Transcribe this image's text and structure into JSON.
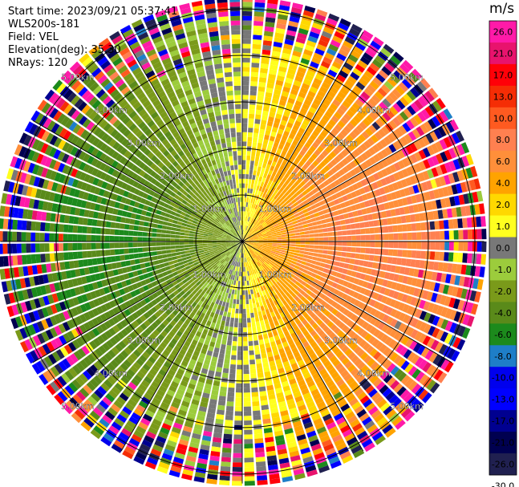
{
  "header": {
    "start_time": "Start time: 2023/09/21 05:37:41",
    "instrument": "WLS200s-181",
    "field": "Field: VEL",
    "elevation": "Elevation(deg): 35.30",
    "nrays": "NRays: 120"
  },
  "chart_data": {
    "type": "heatmap",
    "projection": "polar (PPI)",
    "title": "",
    "field": "VEL",
    "nrays": 120,
    "elevation_deg": 35.3,
    "range_rings_km": [
      1,
      2,
      3,
      4,
      5
    ],
    "range_ring_labels": [
      "1.00km",
      "2.00km",
      "3.00km",
      "4.00km",
      "5.00km"
    ],
    "max_range_km": 5.2,
    "gate_spacing_km": 0.1,
    "azimuth_lines_deg": [
      0,
      30,
      60,
      90,
      120,
      150,
      180,
      210,
      240,
      270,
      300,
      330
    ],
    "colorbar": {
      "unit": "m/s",
      "ticks": [
        "26.0",
        "21.0",
        "17.0",
        "13.0",
        "10.0",
        "8.0",
        "6.0",
        "4.0",
        "2.0",
        "1.0",
        "0.0",
        "-1.0",
        "-2.0",
        "-4.0",
        "-6.0",
        "-8.0",
        "-10.0",
        "-13.0",
        "-17.0",
        "-21.0",
        "-26.0",
        "-30.0"
      ],
      "colors": [
        "#ff1aa8",
        "#e8136d",
        "#ff0008",
        "#f52d05",
        "#ff5a20",
        "#ff8050",
        "#ff8f3a",
        "#ffa300",
        "#ffd800",
        "#ffff1f",
        "#787878",
        "#9ccc3c",
        "#7a9a1a",
        "#5a8a1a",
        "#1c8a1c",
        "#1e7ec8",
        "#0000ee",
        "#0000ff",
        "#000090",
        "#000050",
        "#202050"
      ]
    },
    "velocity_pattern": {
      "receding_sector_deg": [
        15,
        165
      ],
      "approaching_sector_deg": [
        195,
        345
      ],
      "receding_peak_ms": 6,
      "approaching_peak_ms": -6,
      "noise_onset_km": 3.7
    }
  }
}
